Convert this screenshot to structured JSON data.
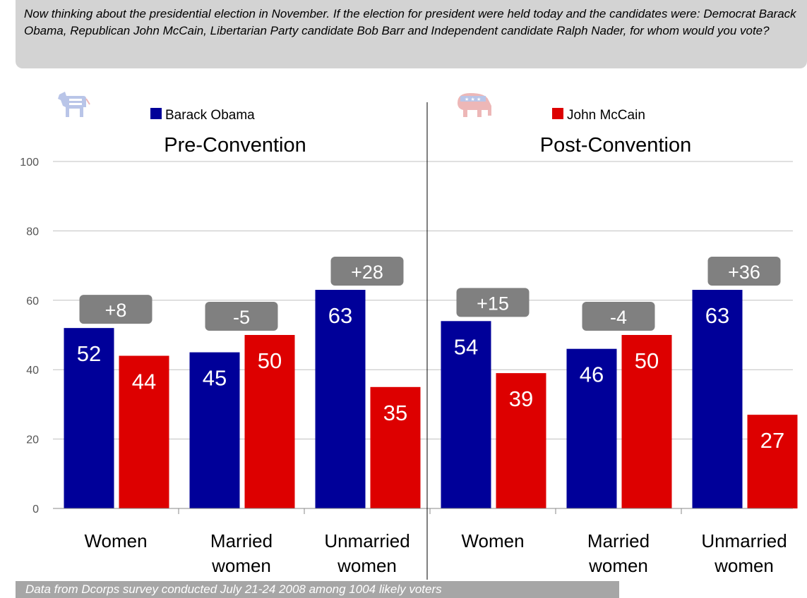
{
  "question": "Now thinking about the presidential election in November. If the election for president were held today and the candidates were: Democrat Barack Obama, Republican John McCain, Libertarian Party candidate Bob Barr and Independent candidate Ralph Nader, for whom would you vote?",
  "footer": "Data from Dcorps survey conducted July 21-24 2008  among 1004 likely voters",
  "colors": {
    "obama": "#000099",
    "mccain": "#dd0000",
    "margin_box": "#808080",
    "grid": "#c0c0c0"
  },
  "icons": {
    "left": "democratic-donkey-icon",
    "right": "republican-elephant-icon"
  },
  "chart_data": {
    "type": "bar",
    "ylim": [
      0,
      100
    ],
    "yticks": [
      0,
      20,
      40,
      60,
      80,
      100
    ],
    "grid": true,
    "legend": [
      {
        "name": "Barack Obama",
        "color": "#000099"
      },
      {
        "name": "John McCain",
        "color": "#dd0000"
      }
    ],
    "panels": [
      {
        "title": "Pre-Convention",
        "categories": [
          [
            "Women"
          ],
          [
            "Married",
            "women"
          ],
          [
            "Unmarried",
            "women"
          ]
        ],
        "series": [
          {
            "name": "Barack Obama",
            "values": [
              52,
              45,
              63
            ]
          },
          {
            "name": "John McCain",
            "values": [
              44,
              50,
              35
            ]
          }
        ],
        "margins": [
          "+8",
          "-5",
          "+28"
        ]
      },
      {
        "title": "Post-Convention",
        "categories": [
          [
            "Women"
          ],
          [
            "Married",
            "women"
          ],
          [
            "Unmarried",
            "women"
          ]
        ],
        "series": [
          {
            "name": "Barack Obama",
            "values": [
              54,
              46,
              63
            ]
          },
          {
            "name": "John McCain",
            "values": [
              39,
              50,
              27
            ]
          }
        ],
        "margins": [
          "+15",
          "-4",
          "+36"
        ]
      }
    ]
  }
}
